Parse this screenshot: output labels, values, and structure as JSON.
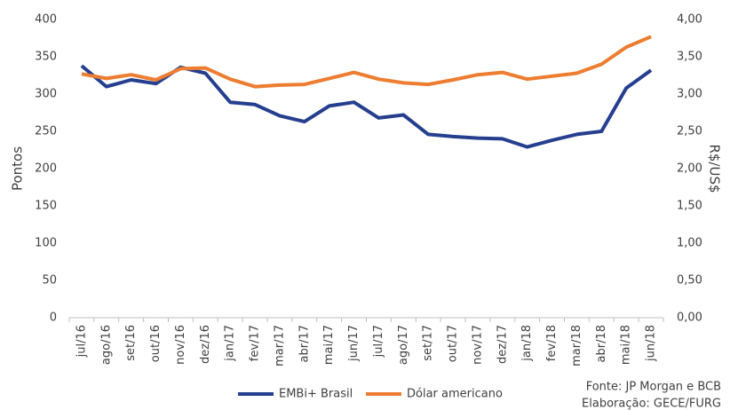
{
  "chart_data": {
    "type": "line",
    "y_label": "Pontos",
    "y2_label": "R$/US$",
    "categories": [
      "jul/16",
      "ago/16",
      "set/16",
      "out/16",
      "nov/16",
      "dez/16",
      "jan/17",
      "fev/17",
      "mar/17",
      "abr/17",
      "mai/17",
      "jun/17",
      "jul/17",
      "ago/17",
      "set/17",
      "out/17",
      "nov/17",
      "dez/17",
      "jan/18",
      "fev/18",
      "mar/18",
      "abr/18",
      "mai/18",
      "jun/18"
    ],
    "series": [
      {
        "name": "EMBi+ Brasil",
        "color": "#253f8e",
        "axis": "y",
        "values": [
          338,
          310,
          319,
          314,
          336,
          328,
          289,
          286,
          271,
          263,
          284,
          289,
          268,
          272,
          246,
          243,
          241,
          240,
          229,
          238,
          246,
          250,
          308,
          332
        ]
      },
      {
        "name": "Dólar americano",
        "color": "#ed7d31",
        "axis": "y2",
        "values": [
          3.27,
          3.21,
          3.26,
          3.19,
          3.34,
          3.35,
          3.2,
          3.1,
          3.12,
          3.13,
          3.21,
          3.29,
          3.2,
          3.15,
          3.13,
          3.19,
          3.26,
          3.29,
          3.2,
          3.24,
          3.28,
          3.4,
          3.63,
          3.77
        ]
      }
    ],
    "ylim": [
      0,
      400
    ],
    "yticks": [
      0,
      50,
      100,
      150,
      200,
      250,
      300,
      350,
      400
    ],
    "y2lim": [
      0,
      4
    ],
    "y2ticks": [
      {
        "value": 0,
        "label": "0,00"
      },
      {
        "value": 0.5,
        "label": "0,50"
      },
      {
        "value": 1,
        "label": "1,00"
      },
      {
        "value": 1.5,
        "label": "1,50"
      },
      {
        "value": 2,
        "label": "2,00"
      },
      {
        "value": 2.5,
        "label": "2,50"
      },
      {
        "value": 3,
        "label": "3,00"
      },
      {
        "value": 3.5,
        "label": "3,50"
      },
      {
        "value": 4,
        "label": "4,00"
      }
    ],
    "grid": false,
    "legend": "bottom",
    "annotations": [
      "Fonte: JP Morgan e BCB",
      "Elaboração: GECE/FURG"
    ]
  }
}
